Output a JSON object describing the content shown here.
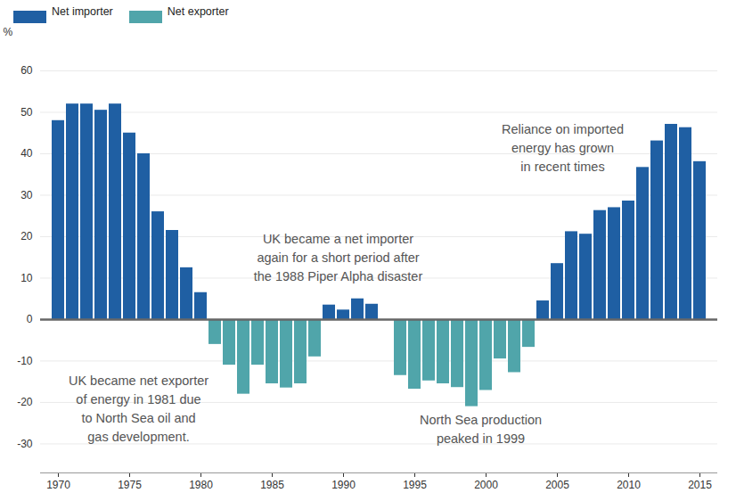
{
  "chart_data": {
    "type": "bar",
    "x": [
      1970,
      1971,
      1972,
      1973,
      1974,
      1975,
      1976,
      1977,
      1978,
      1979,
      1980,
      1981,
      1982,
      1983,
      1984,
      1985,
      1986,
      1987,
      1988,
      1989,
      1990,
      1991,
      1992,
      1993,
      1994,
      1995,
      1996,
      1997,
      1998,
      1999,
      2000,
      2001,
      2002,
      2003,
      2004,
      2005,
      2006,
      2007,
      2008,
      2009,
      2010,
      2011,
      2012,
      2013,
      2014,
      2015
    ],
    "series": [
      {
        "name": "Net importer",
        "color": "#1f5fa3",
        "values": [
          48,
          52,
          52,
          50.5,
          52,
          45,
          40,
          26,
          21.5,
          12.5,
          6.5,
          null,
          null,
          null,
          null,
          null,
          null,
          null,
          null,
          3.5,
          2.3,
          5,
          3.7,
          null,
          null,
          null,
          null,
          null,
          null,
          null,
          null,
          null,
          null,
          null,
          4.5,
          13.5,
          21.2,
          20.6,
          26.3,
          27,
          28.6,
          36.7,
          43.1,
          47.1,
          46.3,
          38.1
        ]
      },
      {
        "name": "Net exporter",
        "color": "#50a5aa",
        "values": [
          null,
          null,
          null,
          null,
          null,
          null,
          null,
          null,
          null,
          null,
          null,
          -6,
          -11,
          -18,
          -11,
          -15.5,
          -16.5,
          -15.5,
          -9,
          null,
          null,
          null,
          null,
          null,
          -13.5,
          -16.8,
          -14.8,
          -15.5,
          -16.4,
          -21,
          -17.1,
          -9.5,
          -12.8,
          -6.7,
          null,
          null,
          null,
          null,
          null,
          null,
          null,
          null,
          null,
          null,
          null,
          null
        ]
      }
    ],
    "xticks": [
      1970,
      1975,
      1980,
      1985,
      1990,
      1995,
      2000,
      2005,
      2010,
      2015
    ],
    "ylabel": "%",
    "ylim": [
      -37,
      60
    ],
    "yticks": [
      -30,
      -20,
      -10,
      0,
      10,
      20,
      30,
      40,
      50,
      60
    ],
    "grid": true,
    "legend": "top-left",
    "annotations": [
      "UK became net exporter\nof energy in 1981 due\nto North Sea oil and\ngas development.",
      "UK became a net importer\nagain for a short period after\nthe 1988 Piper Alpha disaster",
      "North Sea production\npeaked in 1999",
      "Reliance on imported\nenergy has grown\nin recent times"
    ]
  }
}
